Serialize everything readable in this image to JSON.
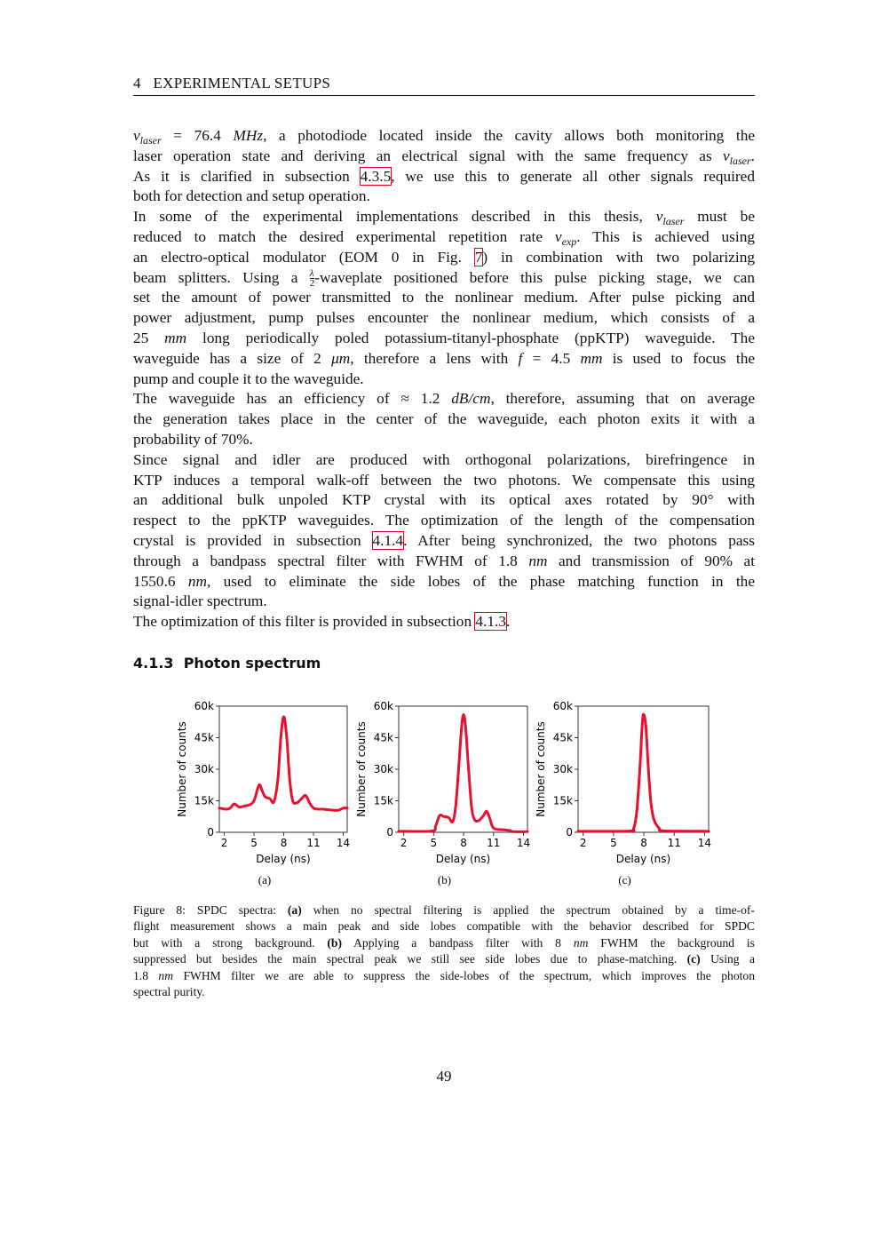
{
  "header": {
    "running_title": "4   EXPERIMENTAL SETUPS"
  },
  "body": {
    "lines": [
      [
        [
          "i",
          "ν"
        ],
        [
          "sub",
          "laser"
        ],
        [
          "t",
          " = 76.4 "
        ],
        [
          "i",
          "MHz"
        ],
        [
          "t",
          ", a photodiode located inside the cavity allows both monitoring the"
        ]
      ],
      [
        [
          "t",
          "laser operation state and deriving an electrical signal with the same frequency as "
        ],
        [
          "i",
          "ν"
        ],
        [
          "sub",
          "laser"
        ],
        [
          "t",
          "."
        ]
      ],
      [
        [
          "t",
          "As it is clarified in subsection "
        ],
        [
          "ref",
          "4.3.5"
        ],
        [
          "t",
          ", we use this to generate all other signals required"
        ]
      ],
      [
        [
          "t",
          "both for detection and setup operation."
        ]
      ],
      [
        [
          "t",
          "In some of the experimental implementations described in this thesis, "
        ],
        [
          "i",
          "ν"
        ],
        [
          "sub",
          "laser"
        ],
        [
          "t",
          " must be"
        ]
      ],
      [
        [
          "t",
          "reduced to match the desired experimental repetition rate "
        ],
        [
          "i",
          "ν"
        ],
        [
          "sub",
          "exp"
        ],
        [
          "t",
          ". This is achieved using"
        ]
      ],
      [
        [
          "t",
          "an electro-optical modulator (EOM 0 in Fig. "
        ],
        [
          "ref",
          "7"
        ],
        [
          "t",
          ") in combination with two polarizing"
        ]
      ],
      [
        [
          "t",
          "beam splitters. Using a "
        ],
        [
          "frac",
          "λ/2"
        ],
        [
          "t",
          "-waveplate positioned before this pulse picking stage, we can"
        ]
      ],
      [
        [
          "t",
          "set the amount of power transmitted to the nonlinear medium. After pulse picking and"
        ]
      ],
      [
        [
          "t",
          "power adjustment, pump pulses encounter the nonlinear medium, which consists of a"
        ]
      ],
      [
        [
          "t",
          "25 "
        ],
        [
          "i",
          "mm"
        ],
        [
          "t",
          " long periodically poled potassium-titanyl-phosphate (ppKTP) waveguide. The"
        ]
      ],
      [
        [
          "t",
          "waveguide has a size of 2 "
        ],
        [
          "i",
          "μm"
        ],
        [
          "t",
          ", therefore a lens with "
        ],
        [
          "i",
          "f"
        ],
        [
          "t",
          " = 4.5 "
        ],
        [
          "i",
          "mm"
        ],
        [
          "t",
          " is used to focus the"
        ]
      ],
      [
        [
          "t",
          "pump and couple it to the waveguide."
        ]
      ],
      [
        [
          "t",
          "The waveguide has an efficiency of ≈ 1.2 "
        ],
        [
          "i",
          "dB/cm"
        ],
        [
          "t",
          ", therefore, assuming that on average"
        ]
      ],
      [
        [
          "t",
          "the generation takes place in the center of the waveguide, each photon exits it with a"
        ]
      ],
      [
        [
          "t",
          "probability of 70%."
        ]
      ],
      [
        [
          "t",
          "Since signal and idler are produced with orthogonal polarizations, birefringence in"
        ]
      ],
      [
        [
          "t",
          "KTP induces a temporal walk-off between the two photons. We compensate this using"
        ]
      ],
      [
        [
          "t",
          "an additional bulk unpoled KTP crystal with its optical axes rotated by 90° with"
        ]
      ],
      [
        [
          "t",
          "respect to the ppKTP waveguides. The optimization of the length of the compensation"
        ]
      ],
      [
        [
          "t",
          "crystal is provided in subsection "
        ],
        [
          "ref",
          "4.1.4"
        ],
        [
          "t",
          ". After being synchronized, the two photons pass"
        ]
      ],
      [
        [
          "t",
          "through a bandpass spectral filter with FWHM of 1.8 "
        ],
        [
          "i",
          "nm"
        ],
        [
          "t",
          " and transmission of 90% at"
        ]
      ],
      [
        [
          "t",
          "1550.6 "
        ],
        [
          "i",
          "nm"
        ],
        [
          "t",
          ", used to eliminate the side lobes of the phase matching function in the"
        ]
      ],
      [
        [
          "t",
          "signal-idler spectrum."
        ]
      ],
      [
        [
          "t",
          "The optimization of this filter is provided in subsection "
        ],
        [
          "ref",
          "4.1.3"
        ],
        [
          "t",
          "."
        ]
      ]
    ],
    "last_lines": [
      3,
      12,
      15,
      23,
      24
    ]
  },
  "section": {
    "heading": "4.1.3  Photon spectrum"
  },
  "chart_data": [
    {
      "type": "line",
      "panel": "(a)",
      "xlabel": "Delay (ns)",
      "ylabel": "Number of counts",
      "xlim": [
        1.5,
        14.4
      ],
      "ylim": [
        0,
        60000
      ],
      "xticks": [
        2,
        5,
        8,
        11,
        14
      ],
      "yticks": [
        0,
        15000,
        30000,
        45000,
        60000
      ],
      "ytick_labels": [
        "0",
        "15k",
        "30k",
        "45k",
        "60k"
      ],
      "color": "#e8102e",
      "grid": false,
      "x": [
        1.5,
        2.2,
        2.6,
        3.0,
        3.5,
        4.0,
        4.5,
        5.0,
        5.5,
        5.8,
        6.1,
        6.6,
        7.0,
        7.4,
        7.7,
        8.0,
        8.3,
        8.6,
        8.9,
        9.3,
        9.8,
        10.2,
        10.6,
        11.0,
        11.5,
        12.0,
        13.0,
        13.5,
        14.0,
        14.4
      ],
      "y": [
        11500,
        11000,
        11500,
        13500,
        12000,
        12500,
        13000,
        15000,
        22500,
        20000,
        17000,
        16000,
        14500,
        25000,
        45000,
        55000,
        45000,
        25000,
        15000,
        14000,
        16000,
        17500,
        14000,
        11500,
        11000,
        11000,
        10500,
        10500,
        11500,
        11500
      ]
    },
    {
      "type": "line",
      "panel": "(b)",
      "xlabel": "Delay (ns)",
      "ylabel": "Number of counts",
      "xlim": [
        1.5,
        14.4
      ],
      "ylim": [
        0,
        60000
      ],
      "xticks": [
        2,
        5,
        8,
        11,
        14
      ],
      "yticks": [
        0,
        15000,
        30000,
        45000,
        60000
      ],
      "ytick_labels": [
        "0",
        "15k",
        "30k",
        "45k",
        "60k"
      ],
      "color": "#e8102e",
      "grid": false,
      "x": [
        1.5,
        4.8,
        5.2,
        5.6,
        6.0,
        6.5,
        6.9,
        7.2,
        7.5,
        7.8,
        8.0,
        8.2,
        8.5,
        8.8,
        9.1,
        9.5,
        10.0,
        10.3,
        10.6,
        11.0,
        12.0,
        12.7,
        13.0,
        14.4
      ],
      "y": [
        500,
        600,
        3000,
        8000,
        7500,
        7000,
        5000,
        12000,
        30000,
        50000,
        56000,
        50000,
        30000,
        12000,
        6000,
        5500,
        8000,
        10000,
        7000,
        2000,
        1200,
        800,
        300,
        300
      ]
    },
    {
      "type": "line",
      "panel": "(c)",
      "xlabel": "Delay (ns)",
      "ylabel": "Number of counts",
      "xlim": [
        1.5,
        14.4
      ],
      "ylim": [
        0,
        60000
      ],
      "xticks": [
        2,
        5,
        8,
        11,
        14
      ],
      "yticks": [
        0,
        15000,
        30000,
        45000,
        60000
      ],
      "ytick_labels": [
        "0",
        "15k",
        "30k",
        "45k",
        "60k"
      ],
      "color": "#e8102e",
      "grid": false,
      "x": [
        1.5,
        6.5,
        7.0,
        7.3,
        7.6,
        7.85,
        8.0,
        8.2,
        8.45,
        8.7,
        9.0,
        9.5,
        10.0,
        14.4
      ],
      "y": [
        500,
        600,
        2000,
        10000,
        30000,
        52000,
        56000,
        50000,
        30000,
        14000,
        6000,
        2000,
        700,
        500
      ]
    }
  ],
  "figure": {
    "caption_lines": [
      [
        [
          "t",
          "Figure 8: SPDC spectra: "
        ],
        [
          "b",
          "(a)"
        ],
        [
          "t",
          " when no spectral filtering is applied the spectrum obtained by a time-of-"
        ]
      ],
      [
        [
          "t",
          "flight measurement shows a main peak and side lobes compatible with the behavior described for SPDC"
        ]
      ],
      [
        [
          "t",
          "but with a strong background. "
        ],
        [
          "b",
          "(b)"
        ],
        [
          "t",
          " Applying a bandpass filter with 8 "
        ],
        [
          "i",
          "nm"
        ],
        [
          "t",
          " FWHM the background is"
        ]
      ],
      [
        [
          "t",
          "suppressed but besides the main spectral peak we still see side lobes due to phase-matching. "
        ],
        [
          "b",
          "(c)"
        ],
        [
          "t",
          " Using a"
        ]
      ],
      [
        [
          "t",
          "1.8 "
        ],
        [
          "i",
          "nm"
        ],
        [
          "t",
          " FWHM filter we are able to suppress the side-lobes of the spectrum, which improves the photon"
        ]
      ],
      [
        [
          "t",
          "spectral purity."
        ]
      ]
    ]
  },
  "page_number": "49"
}
